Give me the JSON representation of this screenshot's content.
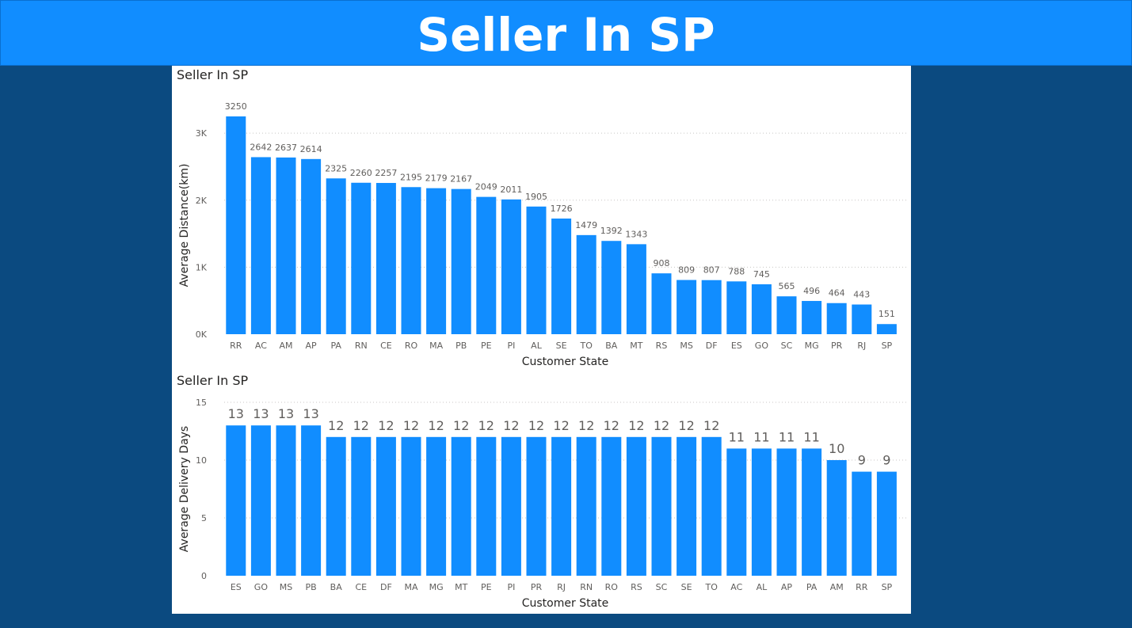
{
  "header": {
    "title": "Seller In SP"
  },
  "chart_data": [
    {
      "type": "bar",
      "title": "Seller In SP",
      "xlabel": "Customer State",
      "ylabel": "Average Distance(km)",
      "ylim": [
        0,
        3250
      ],
      "yticks": [
        "0K",
        "1K",
        "2K",
        "3K"
      ],
      "ytick_values": [
        0,
        1000,
        2000,
        3000
      ],
      "grid": true,
      "bar_color": "#118DFF",
      "categories": [
        "RR",
        "AC",
        "AM",
        "AP",
        "PA",
        "RN",
        "CE",
        "RO",
        "MA",
        "PB",
        "PE",
        "PI",
        "AL",
        "SE",
        "TO",
        "BA",
        "MT",
        "RS",
        "MS",
        "DF",
        "ES",
        "GO",
        "SC",
        "MG",
        "PR",
        "RJ",
        "SP"
      ],
      "values": [
        3250,
        2642,
        2637,
        2614,
        2325,
        2260,
        2257,
        2195,
        2179,
        2167,
        2049,
        2011,
        1905,
        1726,
        1479,
        1392,
        1343,
        908,
        809,
        807,
        788,
        745,
        565,
        496,
        464,
        443,
        151
      ]
    },
    {
      "type": "bar",
      "title": "Seller In SP",
      "xlabel": "Customer State",
      "ylabel": "Average Delivery Days",
      "ylim": [
        0,
        15
      ],
      "yticks": [
        "0",
        "5",
        "10",
        "15"
      ],
      "ytick_values": [
        0,
        5,
        10,
        15
      ],
      "grid": true,
      "bar_color": "#118DFF",
      "categories": [
        "ES",
        "GO",
        "MS",
        "PB",
        "BA",
        "CE",
        "DF",
        "MA",
        "MG",
        "MT",
        "PE",
        "PI",
        "PR",
        "RJ",
        "RN",
        "RO",
        "RS",
        "SC",
        "SE",
        "TO",
        "AC",
        "AL",
        "AP",
        "PA",
        "AM",
        "RR",
        "SP"
      ],
      "values": [
        13,
        13,
        13,
        13,
        12,
        12,
        12,
        12,
        12,
        12,
        12,
        12,
        12,
        12,
        12,
        12,
        12,
        12,
        12,
        12,
        11,
        11,
        11,
        11,
        10,
        9,
        9
      ]
    }
  ]
}
